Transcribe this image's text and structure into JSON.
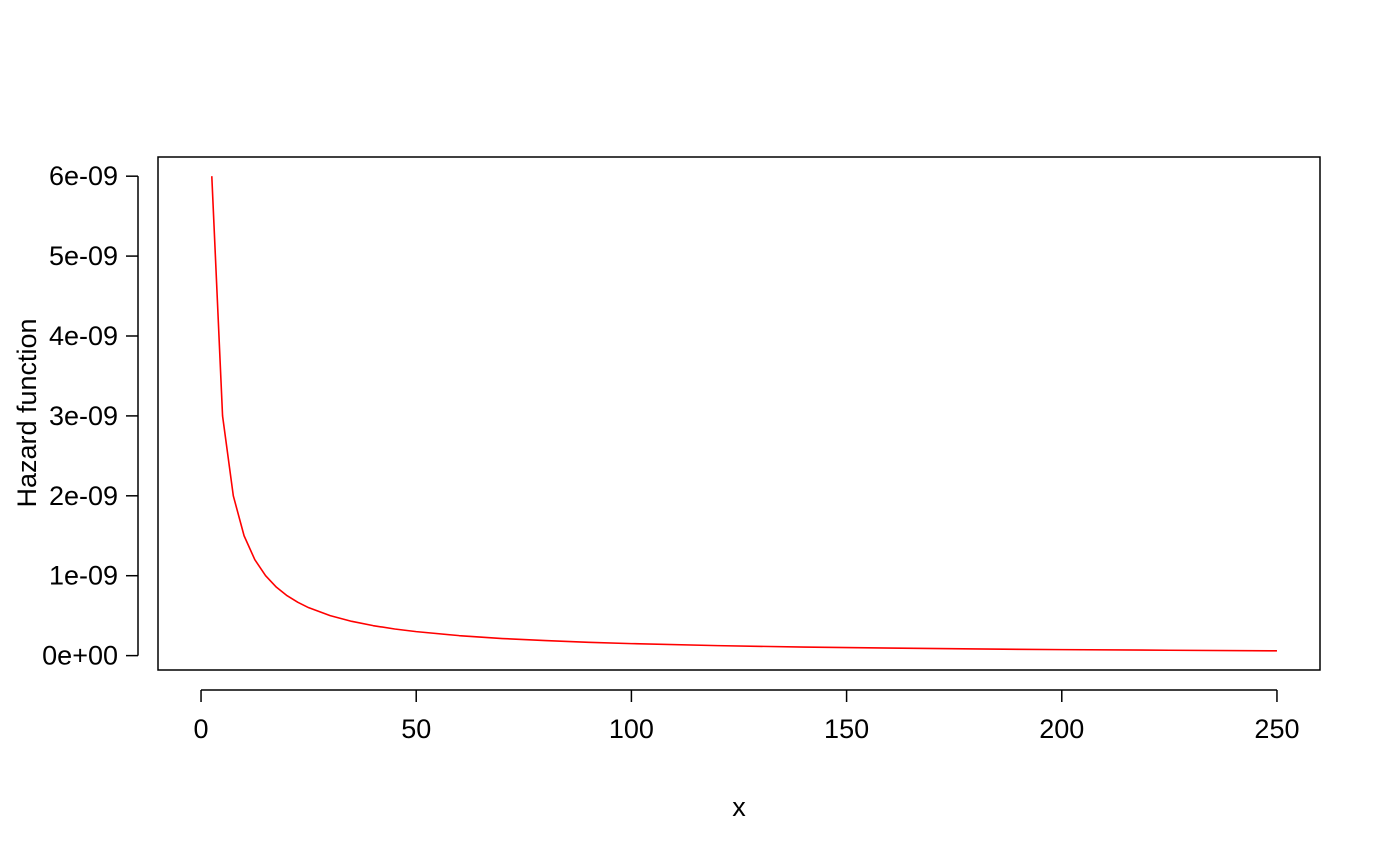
{
  "chart_data": {
    "type": "line",
    "title": "",
    "xlabel": "x",
    "ylabel": "Hazard function",
    "xlim": [
      -10,
      260
    ],
    "ylim": [
      -1.8e-10,
      6.24e-09
    ],
    "x_ticks": [
      0,
      50,
      100,
      150,
      200,
      250
    ],
    "x_tick_labels": [
      "0",
      "50",
      "100",
      "150",
      "200",
      "250"
    ],
    "y_ticks": [
      0,
      1e-09,
      2e-09,
      3e-09,
      4e-09,
      5e-09,
      6e-09
    ],
    "y_tick_labels": [
      "0e+00",
      "1e-09",
      "2e-09",
      "3e-09",
      "4e-09",
      "5e-09",
      "6e-09"
    ],
    "grid": false,
    "series": [
      {
        "color": "#ff0000",
        "x": [
          2.5,
          5,
          7.5,
          10,
          12.5,
          15,
          17.5,
          20,
          22.5,
          25,
          30,
          35,
          40,
          45,
          50,
          60,
          70,
          80,
          90,
          100,
          120,
          140,
          160,
          180,
          200,
          225,
          250
        ],
        "y": [
          6e-09,
          3e-09,
          2e-09,
          1.5e-09,
          1.2e-09,
          1e-09,
          8.57e-10,
          7.5e-10,
          6.67e-10,
          6e-10,
          5e-10,
          4.29e-10,
          3.75e-10,
          3.33e-10,
          3e-10,
          2.5e-10,
          2.14e-10,
          1.88e-10,
          1.67e-10,
          1.5e-10,
          1.25e-10,
          1.07e-10,
          9.4e-11,
          8.3e-11,
          7.5e-11,
          6.7e-11,
          6e-11
        ]
      }
    ]
  }
}
